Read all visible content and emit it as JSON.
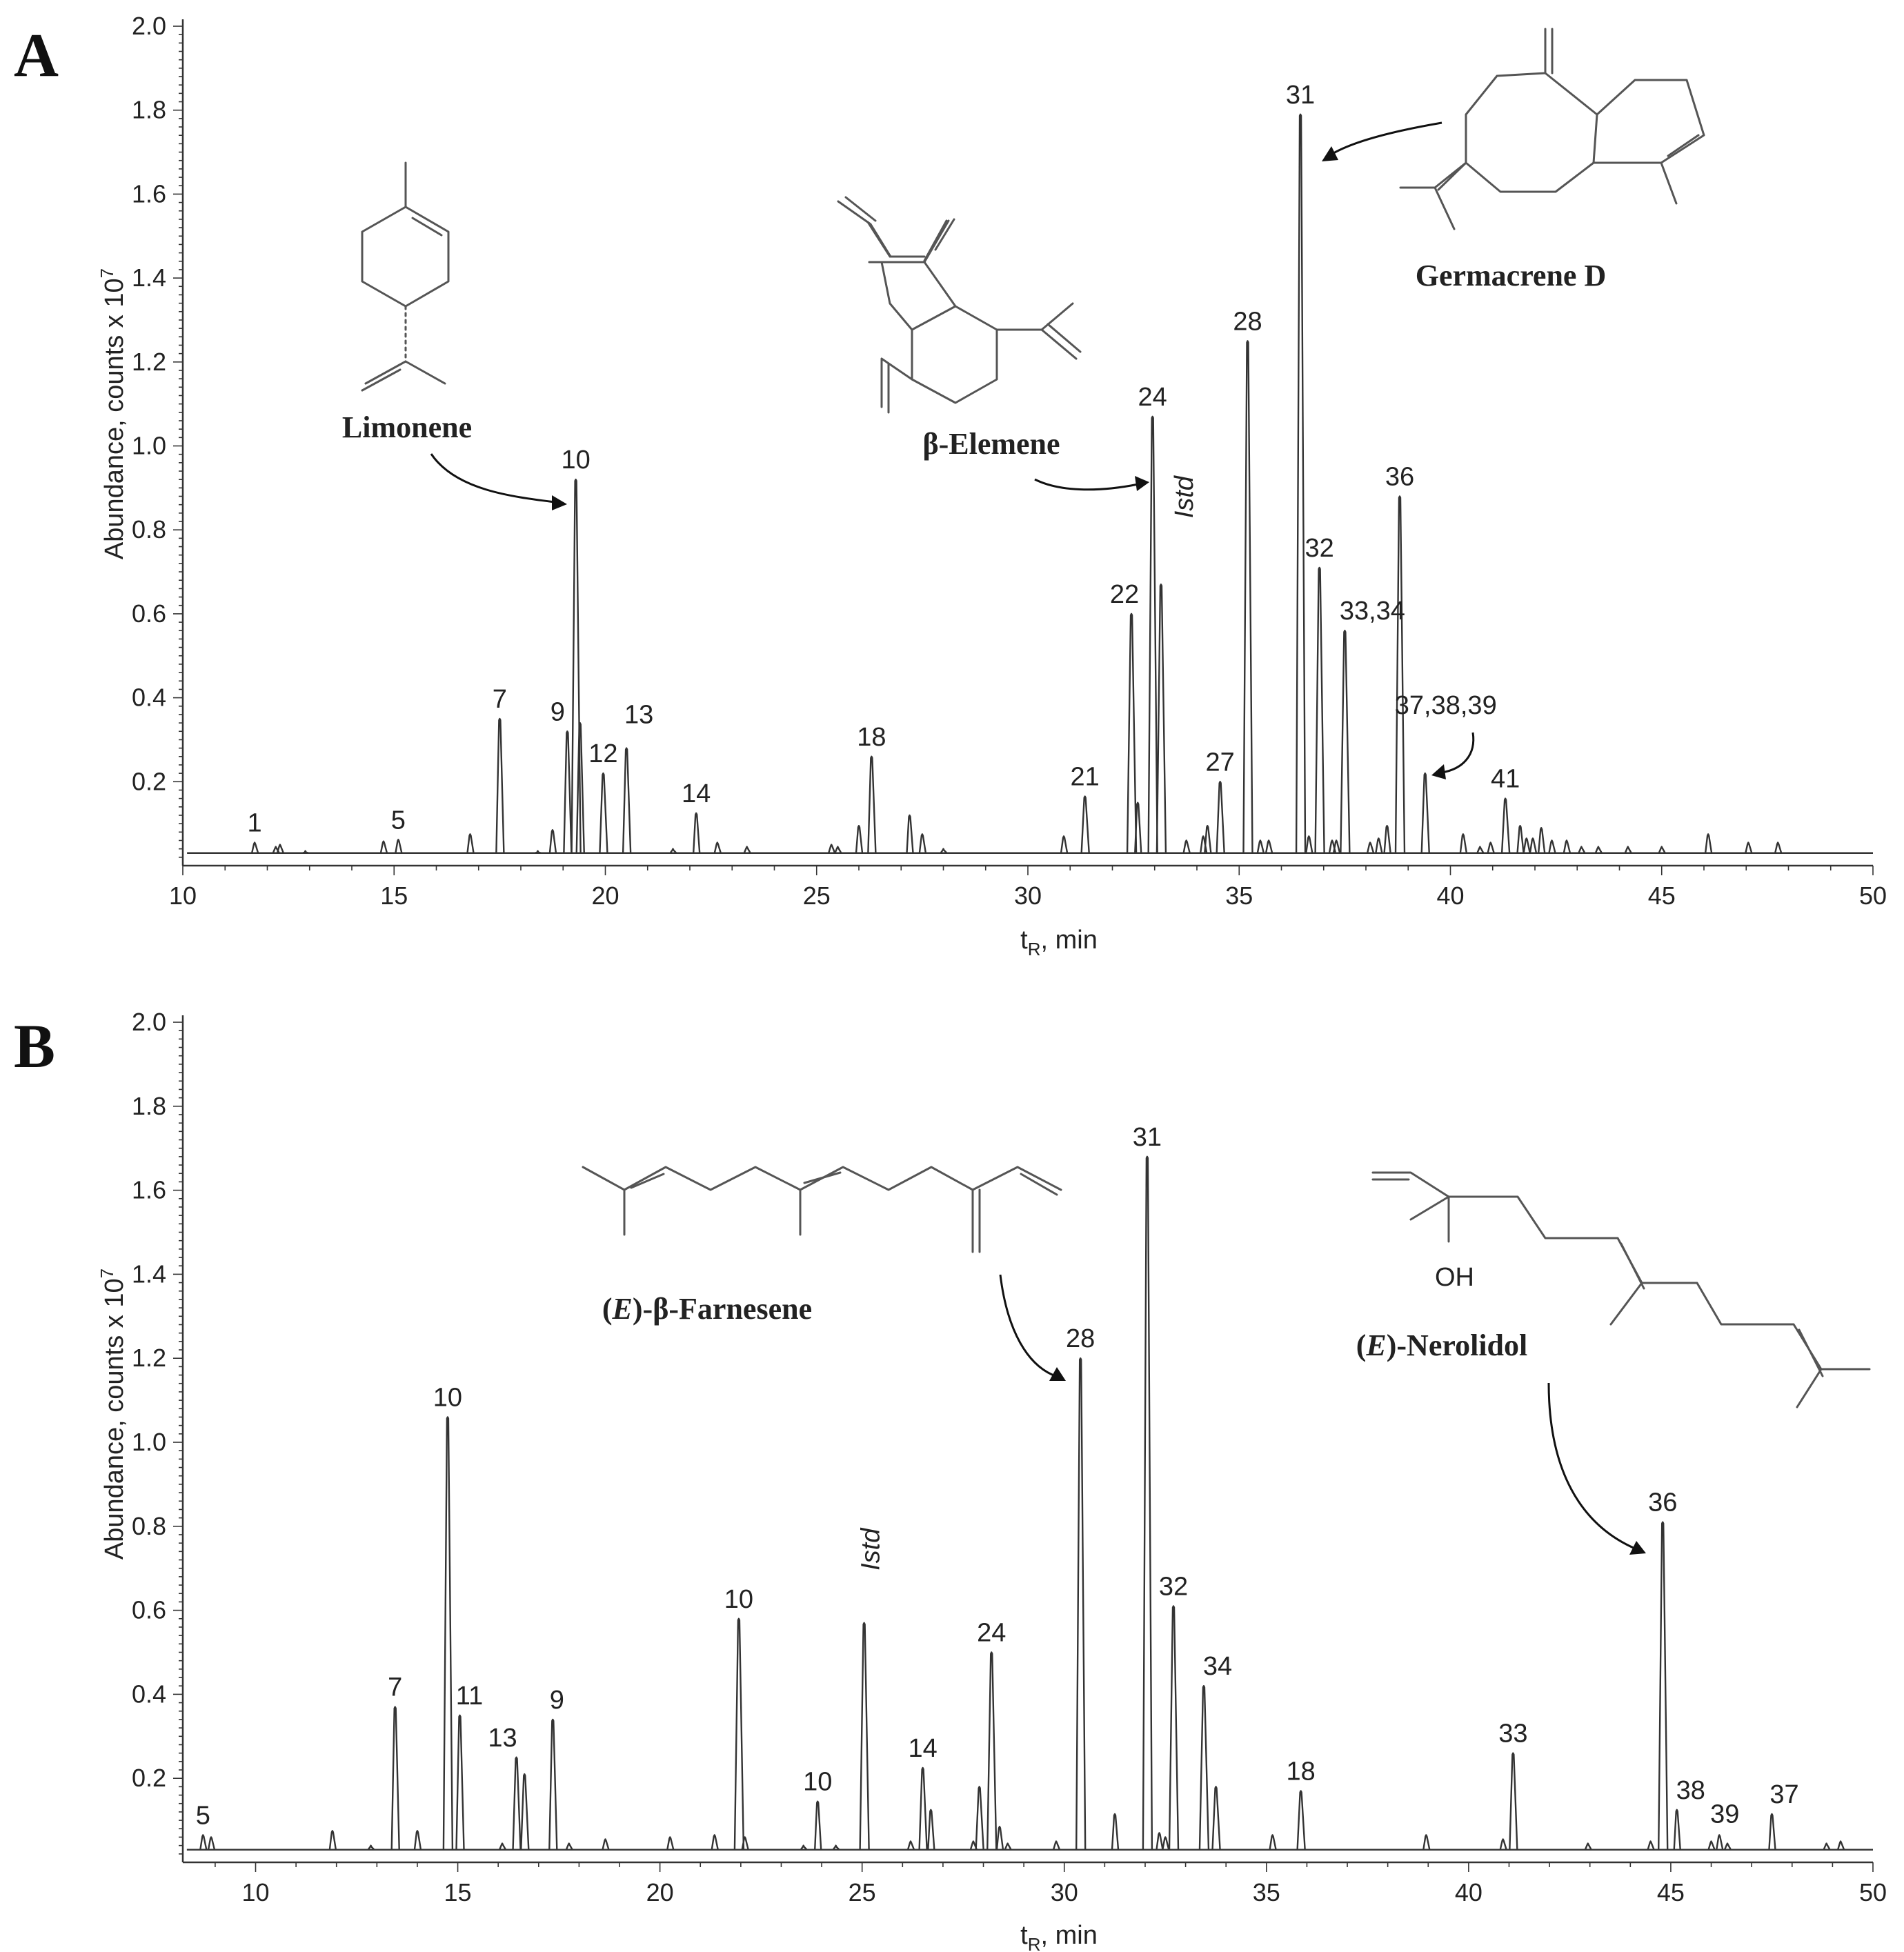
{
  "chart_data": [
    {
      "panel": "A",
      "type": "line",
      "chart_kind": "chromatogram",
      "xlabel": "t_R, min",
      "ylabel": "Abundance, counts x 10^7",
      "xlim": [
        10,
        50
      ],
      "ylim": [
        0,
        2.0
      ],
      "x_ticks": [
        10,
        15,
        20,
        25,
        30,
        35,
        40,
        45,
        50
      ],
      "y_ticks": [
        0.2,
        0.4,
        0.6,
        0.8,
        1.0,
        1.2,
        1.4,
        1.6,
        1.8,
        2.0
      ],
      "baseline": 0.03,
      "peaks": [
        {
          "x": 11.7,
          "y": 0.055,
          "label": "1"
        },
        {
          "x": 12.2,
          "y": 0.045
        },
        {
          "x": 12.3,
          "y": 0.05
        },
        {
          "x": 12.9,
          "y": 0.035
        },
        {
          "x": 14.75,
          "y": 0.058
        },
        {
          "x": 15.1,
          "y": 0.062,
          "label": "5"
        },
        {
          "x": 16.8,
          "y": 0.075
        },
        {
          "x": 17.5,
          "y": 0.35,
          "label": "7"
        },
        {
          "x": 18.4,
          "y": 0.035
        },
        {
          "x": 18.75,
          "y": 0.085
        },
        {
          "x": 19.1,
          "y": 0.32,
          "label": "9"
        },
        {
          "x": 19.3,
          "y": 0.92,
          "label": "10"
        },
        {
          "x": 19.4,
          "y": 0.34
        },
        {
          "x": 19.95,
          "y": 0.22,
          "label": "12"
        },
        {
          "x": 20.5,
          "y": 0.28,
          "label": "13"
        },
        {
          "x": 21.6,
          "y": 0.04
        },
        {
          "x": 22.15,
          "y": 0.125,
          "label": "14"
        },
        {
          "x": 22.65,
          "y": 0.055
        },
        {
          "x": 23.35,
          "y": 0.045
        },
        {
          "x": 25.35,
          "y": 0.05
        },
        {
          "x": 25.5,
          "y": 0.045
        },
        {
          "x": 26.0,
          "y": 0.095
        },
        {
          "x": 26.3,
          "y": 0.26,
          "label": "18"
        },
        {
          "x": 27.2,
          "y": 0.12
        },
        {
          "x": 27.5,
          "y": 0.075
        },
        {
          "x": 28.0,
          "y": 0.04
        },
        {
          "x": 30.85,
          "y": 0.07
        },
        {
          "x": 31.35,
          "y": 0.165,
          "label": "21"
        },
        {
          "x": 32.45,
          "y": 0.6,
          "label": "22"
        },
        {
          "x": 32.6,
          "y": 0.15
        },
        {
          "x": 32.95,
          "y": 1.07,
          "label": "24"
        },
        {
          "x": 33.15,
          "y": 0.67,
          "label": "Istd",
          "italic": true
        },
        {
          "x": 33.75,
          "y": 0.06
        },
        {
          "x": 34.15,
          "y": 0.07
        },
        {
          "x": 34.25,
          "y": 0.095
        },
        {
          "x": 34.55,
          "y": 0.2,
          "label": "27"
        },
        {
          "x": 35.2,
          "y": 1.25,
          "label": "28"
        },
        {
          "x": 35.5,
          "y": 0.06
        },
        {
          "x": 35.7,
          "y": 0.06
        },
        {
          "x": 36.45,
          "y": 1.79,
          "label": "31"
        },
        {
          "x": 36.65,
          "y": 0.07
        },
        {
          "x": 36.9,
          "y": 0.71,
          "label": "32"
        },
        {
          "x": 37.2,
          "y": 0.06
        },
        {
          "x": 37.3,
          "y": 0.06
        },
        {
          "x": 37.5,
          "y": 0.56,
          "label": "33,34"
        },
        {
          "x": 38.1,
          "y": 0.055
        },
        {
          "x": 38.3,
          "y": 0.065
        },
        {
          "x": 38.5,
          "y": 0.095
        },
        {
          "x": 38.8,
          "y": 0.88,
          "label": "36"
        },
        {
          "x": 39.4,
          "y": 0.22,
          "label": "37,38,39"
        },
        {
          "x": 40.3,
          "y": 0.075
        },
        {
          "x": 40.7,
          "y": 0.045
        },
        {
          "x": 40.95,
          "y": 0.055
        },
        {
          "x": 41.3,
          "y": 0.16,
          "label": "41"
        },
        {
          "x": 41.65,
          "y": 0.095
        },
        {
          "x": 41.8,
          "y": 0.065
        },
        {
          "x": 41.95,
          "y": 0.065
        },
        {
          "x": 42.15,
          "y": 0.09
        },
        {
          "x": 42.4,
          "y": 0.06
        },
        {
          "x": 42.75,
          "y": 0.06
        },
        {
          "x": 43.1,
          "y": 0.045
        },
        {
          "x": 43.5,
          "y": 0.045
        },
        {
          "x": 44.2,
          "y": 0.045
        },
        {
          "x": 45.0,
          "y": 0.045
        },
        {
          "x": 46.1,
          "y": 0.075
        },
        {
          "x": 47.05,
          "y": 0.055
        },
        {
          "x": 47.75,
          "y": 0.055
        }
      ],
      "compounds": [
        {
          "name": "Limonene",
          "target": "10"
        },
        {
          "name": "β-Elemene",
          "target": "24"
        },
        {
          "name": "Germacrene D",
          "target": "31"
        }
      ]
    },
    {
      "panel": "B",
      "type": "line",
      "chart_kind": "chromatogram",
      "xlabel": "t_R, min",
      "ylabel": "Abundance, counts x 10^7",
      "xlim": [
        8.2,
        50
      ],
      "ylim": [
        0,
        2.0
      ],
      "x_ticks": [
        10,
        15,
        20,
        25,
        30,
        35,
        40,
        45,
        50
      ],
      "y_ticks": [
        0.2,
        0.4,
        0.6,
        0.8,
        1.0,
        1.2,
        1.4,
        1.6,
        1.8,
        2.0
      ],
      "baseline": 0.03,
      "peaks": [
        {
          "x": 8.7,
          "y": 0.065,
          "label": "5"
        },
        {
          "x": 8.9,
          "y": 0.06
        },
        {
          "x": 11.9,
          "y": 0.075
        },
        {
          "x": 12.85,
          "y": 0.04
        },
        {
          "x": 13.45,
          "y": 0.37,
          "label": "7"
        },
        {
          "x": 14.0,
          "y": 0.075
        },
        {
          "x": 14.75,
          "y": 1.06,
          "label": "10"
        },
        {
          "x": 15.05,
          "y": 0.35,
          "label": "11"
        },
        {
          "x": 16.1,
          "y": 0.045
        },
        {
          "x": 16.45,
          "y": 0.25,
          "label": "13"
        },
        {
          "x": 16.65,
          "y": 0.21
        },
        {
          "x": 17.35,
          "y": 0.34,
          "label": "9"
        },
        {
          "x": 17.75,
          "y": 0.045
        },
        {
          "x": 18.65,
          "y": 0.055
        },
        {
          "x": 20.25,
          "y": 0.06
        },
        {
          "x": 21.35,
          "y": 0.065
        },
        {
          "x": 21.95,
          "y": 0.58,
          "label": "10"
        },
        {
          "x": 22.1,
          "y": 0.06
        },
        {
          "x": 23.55,
          "y": 0.04
        },
        {
          "x": 23.9,
          "y": 0.145,
          "label": "10"
        },
        {
          "x": 24.35,
          "y": 0.04
        },
        {
          "x": 25.05,
          "y": 0.57,
          "label": "Istd",
          "italic": true
        },
        {
          "x": 26.2,
          "y": 0.05
        },
        {
          "x": 26.5,
          "y": 0.225,
          "label": "14"
        },
        {
          "x": 26.7,
          "y": 0.125
        },
        {
          "x": 27.75,
          "y": 0.05
        },
        {
          "x": 27.9,
          "y": 0.18
        },
        {
          "x": 28.2,
          "y": 0.5,
          "label": "24"
        },
        {
          "x": 28.4,
          "y": 0.085
        },
        {
          "x": 28.6,
          "y": 0.045
        },
        {
          "x": 29.8,
          "y": 0.05
        },
        {
          "x": 30.4,
          "y": 1.2,
          "label": "28"
        },
        {
          "x": 31.25,
          "y": 0.115
        },
        {
          "x": 32.05,
          "y": 1.68,
          "label": "31"
        },
        {
          "x": 32.35,
          "y": 0.07
        },
        {
          "x": 32.5,
          "y": 0.06
        },
        {
          "x": 32.7,
          "y": 0.61,
          "label": "32"
        },
        {
          "x": 33.45,
          "y": 0.42,
          "label": "34"
        },
        {
          "x": 33.75,
          "y": 0.18
        },
        {
          "x": 35.15,
          "y": 0.065
        },
        {
          "x": 35.85,
          "y": 0.17,
          "label": "18"
        },
        {
          "x": 38.95,
          "y": 0.065
        },
        {
          "x": 40.85,
          "y": 0.055
        },
        {
          "x": 41.1,
          "y": 0.26,
          "label": "33"
        },
        {
          "x": 42.95,
          "y": 0.045
        },
        {
          "x": 44.5,
          "y": 0.05
        },
        {
          "x": 44.8,
          "y": 0.81,
          "label": "36"
        },
        {
          "x": 45.15,
          "y": 0.125,
          "label": "38"
        },
        {
          "x": 46.0,
          "y": 0.05
        },
        {
          "x": 46.2,
          "y": 0.065,
          "label": "39"
        },
        {
          "x": 46.4,
          "y": 0.045
        },
        {
          "x": 47.5,
          "y": 0.115,
          "label": "37"
        },
        {
          "x": 48.85,
          "y": 0.045
        },
        {
          "x": 49.2,
          "y": 0.05
        }
      ],
      "compounds": [
        {
          "name": "(E)-β-Farnesene",
          "target": "28"
        },
        {
          "name": "(E)-Nerolidol",
          "target": "36"
        }
      ]
    }
  ],
  "panels": {
    "a": {
      "letter": "A",
      "xlabel": {
        "t": "t",
        "sub": "R",
        "rest": ", min"
      },
      "ylabel": {
        "main": "Abundance, counts x 10",
        "sup": "7"
      },
      "compounds": {
        "limonene": "Limonene",
        "elemene": "β-Elemene",
        "germacrene": "Germacrene D"
      }
    },
    "b": {
      "letter": "B",
      "xlabel": {
        "t": "t",
        "sub": "R",
        "rest": ", min"
      },
      "ylabel": {
        "main": "Abundance, counts x 10",
        "sup": "7"
      },
      "compounds": {
        "farnesene": {
          "open": "(",
          "e": "E",
          "rest": ")-β-Farnesene"
        },
        "nerolidol": {
          "open": "(",
          "e": "E",
          "rest": ")-Nerolidol"
        },
        "oh": "OH"
      }
    }
  }
}
